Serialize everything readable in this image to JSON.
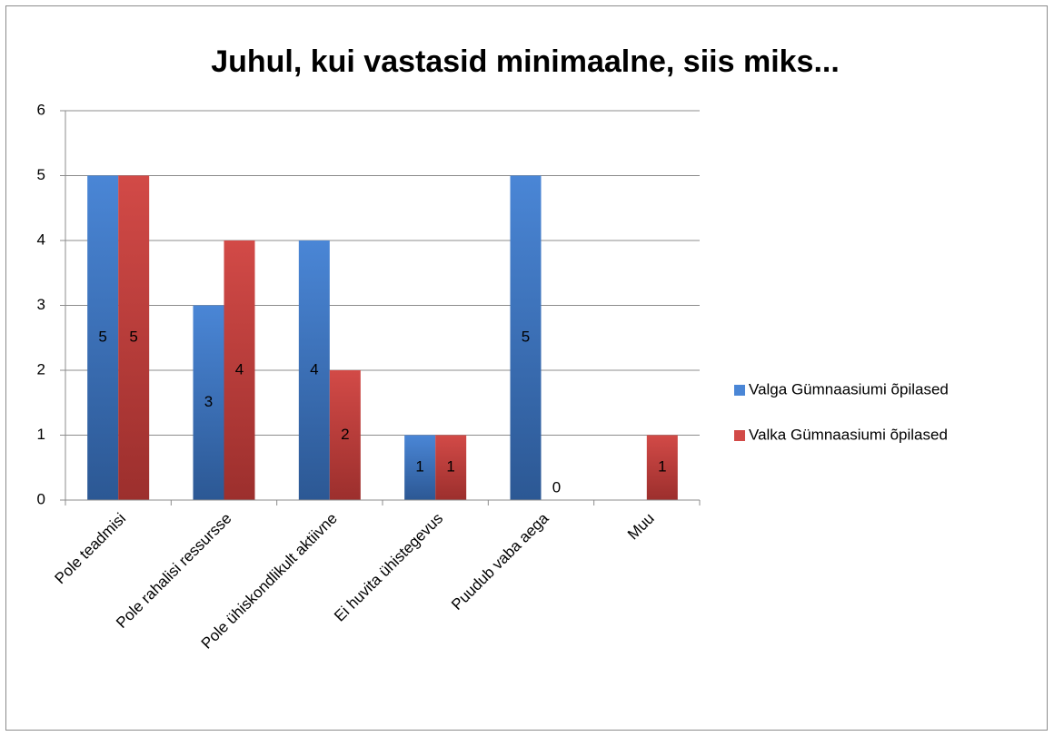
{
  "chart_data": {
    "type": "bar",
    "title": "Juhul, kui vastasid minimaalne, siis miks...",
    "categories": [
      "Pole teadmisi",
      "Pole rahalisi ressursse",
      "Pole ühiskondlikult aktiivne",
      "Ei huvita ühistegevus",
      "Puudub vaba aega",
      "Muu"
    ],
    "series": [
      {
        "name": "Valga Gümnaasiumi õpilased",
        "color": "#4a86d6",
        "values": [
          5,
          3,
          4,
          1,
          5,
          null
        ]
      },
      {
        "name": "Valka Gümnaasiumi õpilased",
        "color": "#d24a47",
        "values": [
          5,
          4,
          2,
          1,
          0,
          1
        ]
      }
    ],
    "ylim": [
      0,
      6
    ],
    "yticks": [
      0,
      1,
      2,
      3,
      4,
      5,
      6
    ],
    "grid": true,
    "legend": "right"
  }
}
